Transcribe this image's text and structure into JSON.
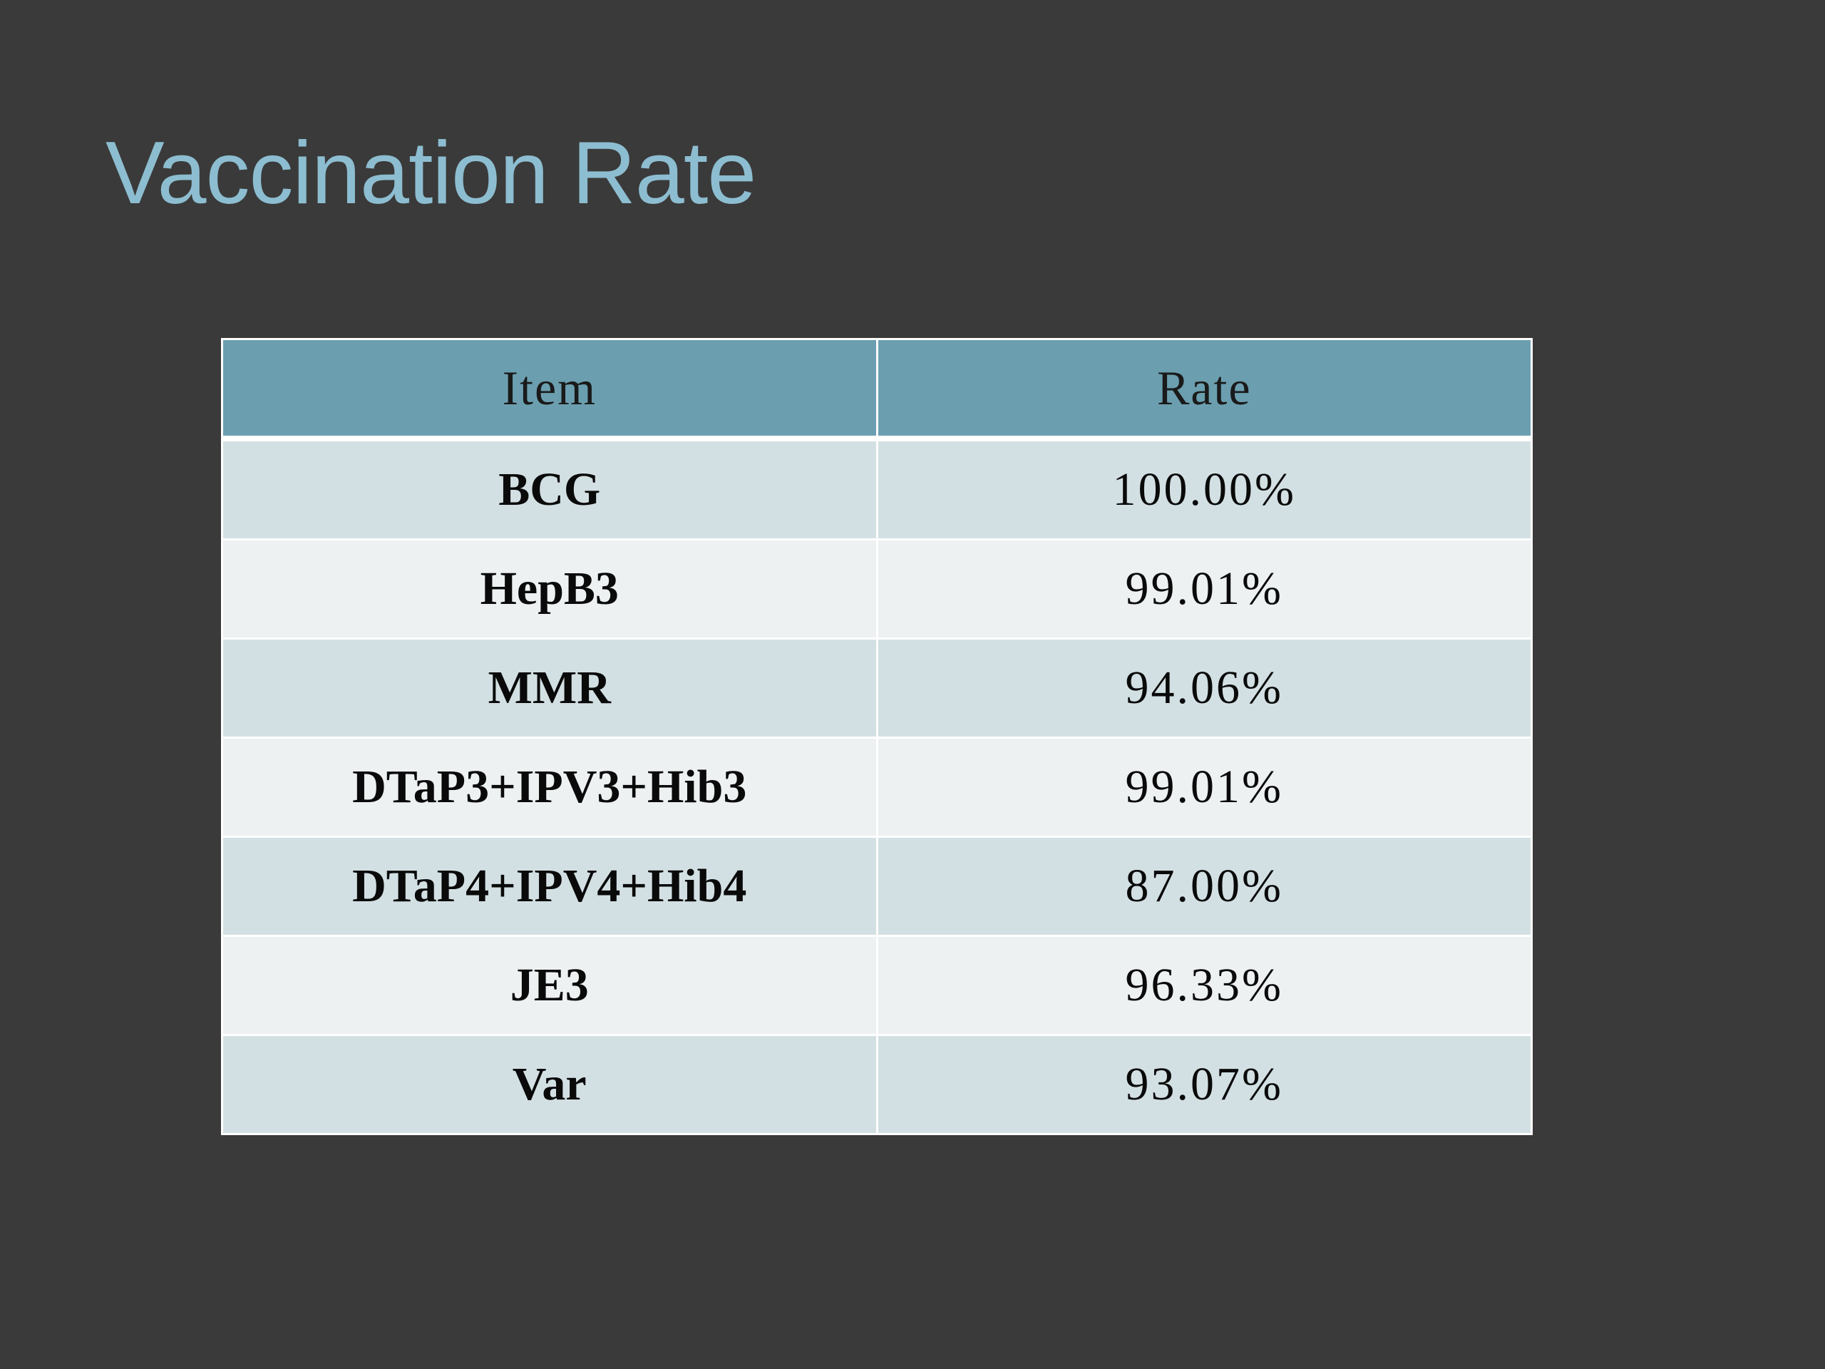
{
  "slide": {
    "title": "Vaccination Rate"
  },
  "table": {
    "headers": {
      "item": "Item",
      "rate": "Rate"
    },
    "rows": [
      {
        "item": "BCG",
        "rate": "100.00%"
      },
      {
        "item": "HepB3",
        "rate": "99.01%"
      },
      {
        "item": "MMR",
        "rate": "94.06%"
      },
      {
        "item": "DTaP3+IPV3+Hib3",
        "rate": "99.01%"
      },
      {
        "item": "DTaP4+IPV4+Hib4",
        "rate": "87.00%"
      },
      {
        "item": "JE3",
        "rate": "96.33%"
      },
      {
        "item": "Var",
        "rate": "93.07%"
      }
    ]
  },
  "colors": {
    "background": "#3a3a3a",
    "title": "#8dbdd0",
    "header_fill": "#6b9faf",
    "row_dark": "#d3e0e3",
    "row_light": "#edf1f2"
  }
}
